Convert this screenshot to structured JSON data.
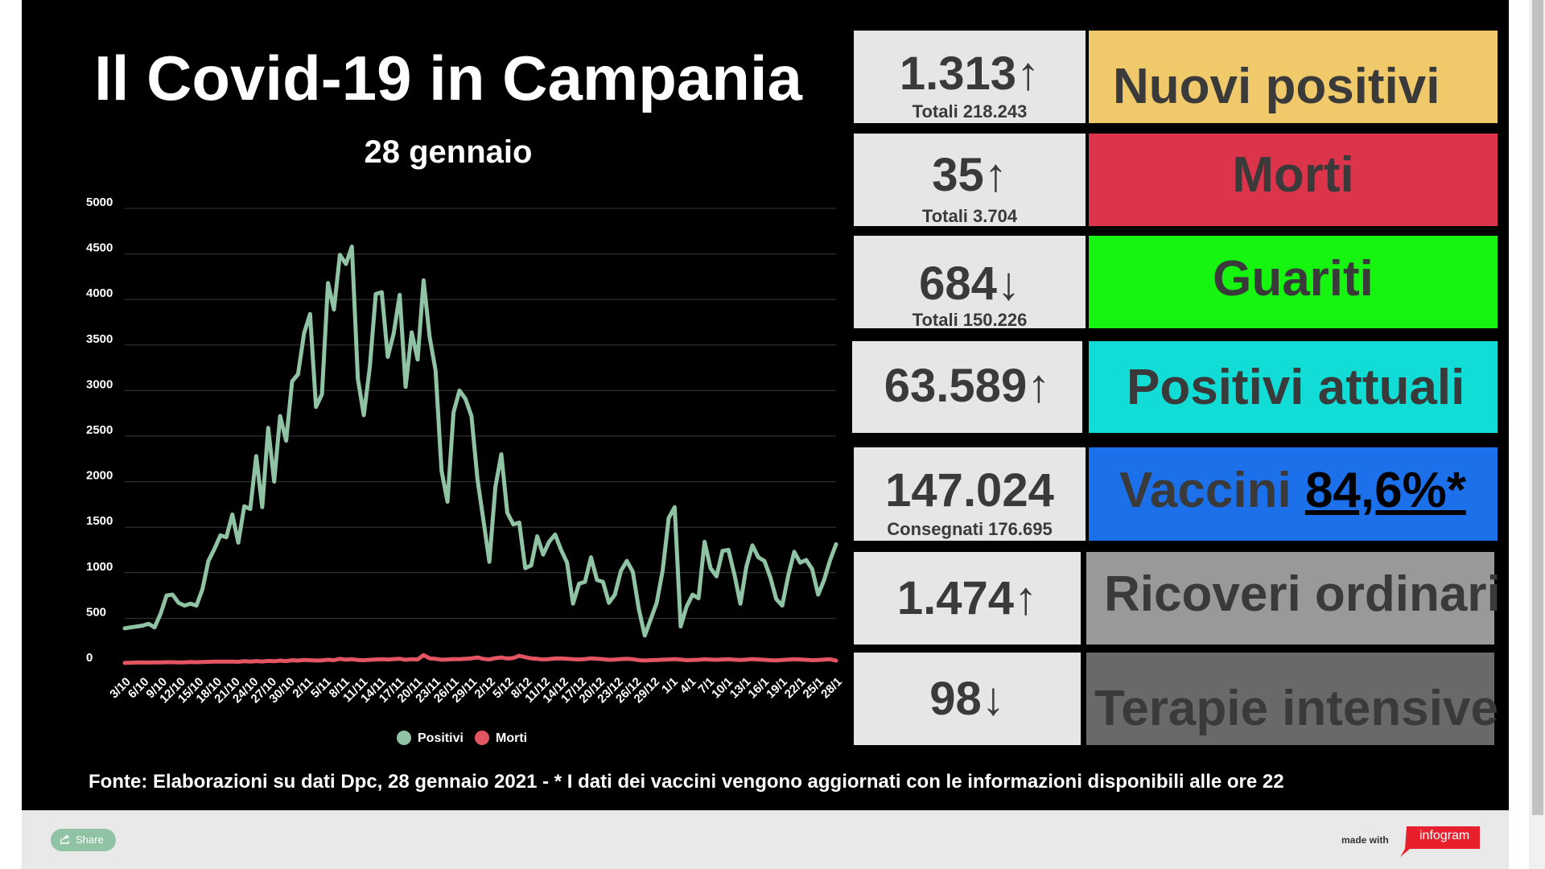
{
  "header": {
    "title": "Il Covid-19 in Campania",
    "subtitle": "28 gennaio"
  },
  "stats": [
    {
      "value": "1.313",
      "arrow": "↑",
      "sub": "Totali 218.243",
      "label": "Nuovi positivi",
      "label_color": "#f0c96b"
    },
    {
      "value": "35",
      "arrow": "↑",
      "sub": "Totali 3.704",
      "label": "Morti",
      "label_color": "#dc344b"
    },
    {
      "value": "684",
      "arrow": "↓",
      "sub": "Totali 150.226",
      "label": "Guariti",
      "label_color": "#15f510"
    },
    {
      "value": "63.589",
      "arrow": "↑",
      "sub": "",
      "label": "Positivi attuali",
      "label_color": "#11ddd6"
    },
    {
      "value": "147.024",
      "arrow": "",
      "sub": "Consegnati 176.695",
      "label": "Vaccini",
      "label_extra": "84,6%*",
      "label_color": "#1c70ea"
    },
    {
      "value": "1.474",
      "arrow": "↑",
      "sub": "",
      "label": "Ricoveri ordinari",
      "label_color": "#999999"
    },
    {
      "value": "98",
      "arrow": "↓",
      "sub": "",
      "label": "Terapie intensive",
      "label_color": "#696969"
    }
  ],
  "footer": {
    "note": "Fonte: Elaborazioni su dati Dpc, 28 gennaio 2021 - * I dati dei vaccini vengono aggiornati con le informazioni disponibili alle ore 22"
  },
  "bottom_bar": {
    "share_label": "Share",
    "made_with": "made with",
    "brand": "infogram"
  },
  "colors": {
    "positivi": "#8fc3a4",
    "morti": "#e25561",
    "background": "#000000"
  },
  "chart_data": {
    "type": "line",
    "ylim": [
      0,
      5000
    ],
    "yticks": [
      0,
      500,
      1000,
      1500,
      2000,
      2500,
      3000,
      3500,
      4000,
      4500,
      5000
    ],
    "x_tick_labels": [
      "3/10",
      "6/10",
      "9/10",
      "12/10",
      "15/10",
      "18/10",
      "21/10",
      "24/10",
      "27/10",
      "30/10",
      "2/11",
      "5/11",
      "8/11",
      "11/11",
      "14/11",
      "17/11",
      "20/11",
      "23/11",
      "26/11",
      "29/11",
      "2/12",
      "5/12",
      "8/12",
      "11/12",
      "14/12",
      "17/12",
      "20/12",
      "23/12",
      "26/12",
      "29/12",
      "1/1",
      "4/1",
      "7/1",
      "10/1",
      "13/1",
      "16/1",
      "19/1",
      "22/1",
      "25/1",
      "28/1"
    ],
    "legend_position": "bottom",
    "grid": true,
    "series": [
      {
        "name": "Positivi",
        "color": "#8fc3a4",
        "values": [
          390,
          400,
          410,
          420,
          440,
          400,
          550,
          750,
          760,
          670,
          640,
          660,
          640,
          820,
          1130,
          1260,
          1410,
          1390,
          1640,
          1330,
          1730,
          1700,
          2280,
          1720,
          2590,
          2000,
          2720,
          2450,
          3100,
          3180,
          3630,
          3840,
          2820,
          2960,
          4180,
          3890,
          4490,
          4390,
          4580,
          3130,
          2730,
          3260,
          4060,
          4080,
          3370,
          3630,
          4050,
          3040,
          3640,
          3340,
          4210,
          3590,
          3220,
          2120,
          1780,
          2760,
          3000,
          2910,
          2720,
          2030,
          1580,
          1120,
          1940,
          2300,
          1660,
          1530,
          1550,
          1050,
          1080,
          1400,
          1200,
          1340,
          1420,
          1250,
          1110,
          660,
          880,
          900,
          1170,
          920,
          900,
          670,
          760,
          1020,
          1130,
          1010,
          600,
          310,
          490,
          670,
          1030,
          1600,
          1720,
          410,
          630,
          760,
          720,
          1340,
          1050,
          960,
          1240,
          1250,
          980,
          660,
          1070,
          1300,
          1170,
          1130,
          950,
          710,
          640,
          970,
          1230,
          1110,
          1140,
          1040,
          760,
          920,
          1140,
          1313
        ]
      },
      {
        "name": "Morti",
        "color": "#e25561",
        "values": [
          10,
          12,
          14,
          15,
          14,
          15,
          16,
          18,
          18,
          16,
          17,
          20,
          18,
          20,
          22,
          24,
          25,
          24,
          25,
          22,
          28,
          24,
          30,
          26,
          32,
          28,
          35,
          30,
          40,
          35,
          42,
          40,
          36,
          38,
          45,
          40,
          55,
          45,
          50,
          42,
          40,
          44,
          48,
          50,
          46,
          52,
          56,
          44,
          50,
          48,
          95,
          60,
          55,
          45,
          48,
          52,
          50,
          55,
          60,
          70,
          55,
          48,
          62,
          70,
          58,
          64,
          88,
          72,
          60,
          55,
          48,
          52,
          58,
          60,
          55,
          50,
          48,
          52,
          60,
          55,
          50,
          44,
          46,
          52,
          55,
          50,
          40,
          36,
          40,
          42,
          45,
          48,
          52,
          46,
          40,
          42,
          44,
          50,
          46,
          44,
          48,
          50,
          45,
          42,
          46,
          52,
          48,
          44,
          40,
          38,
          42,
          46,
          50,
          48,
          44,
          40,
          42,
          46,
          50,
          35
        ]
      }
    ]
  }
}
